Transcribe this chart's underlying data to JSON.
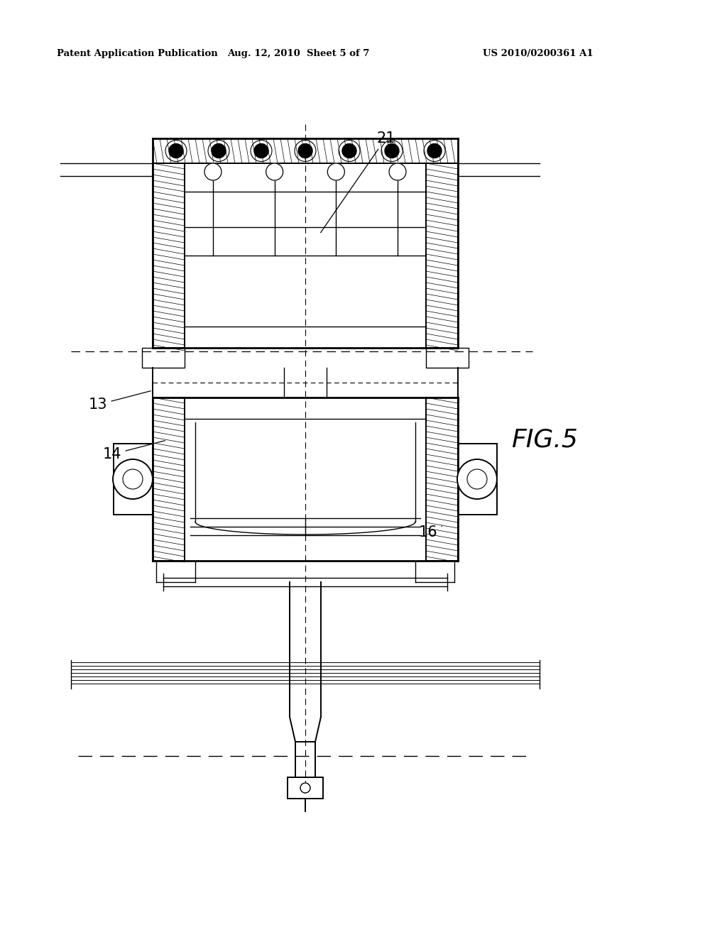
{
  "background_color": "#ffffff",
  "header_left": "Patent Application Publication",
  "header_center": "Aug. 12, 2010  Sheet 5 of 7",
  "header_right": "US 2010/0200361 A1",
  "fig_label": "FIG.5"
}
